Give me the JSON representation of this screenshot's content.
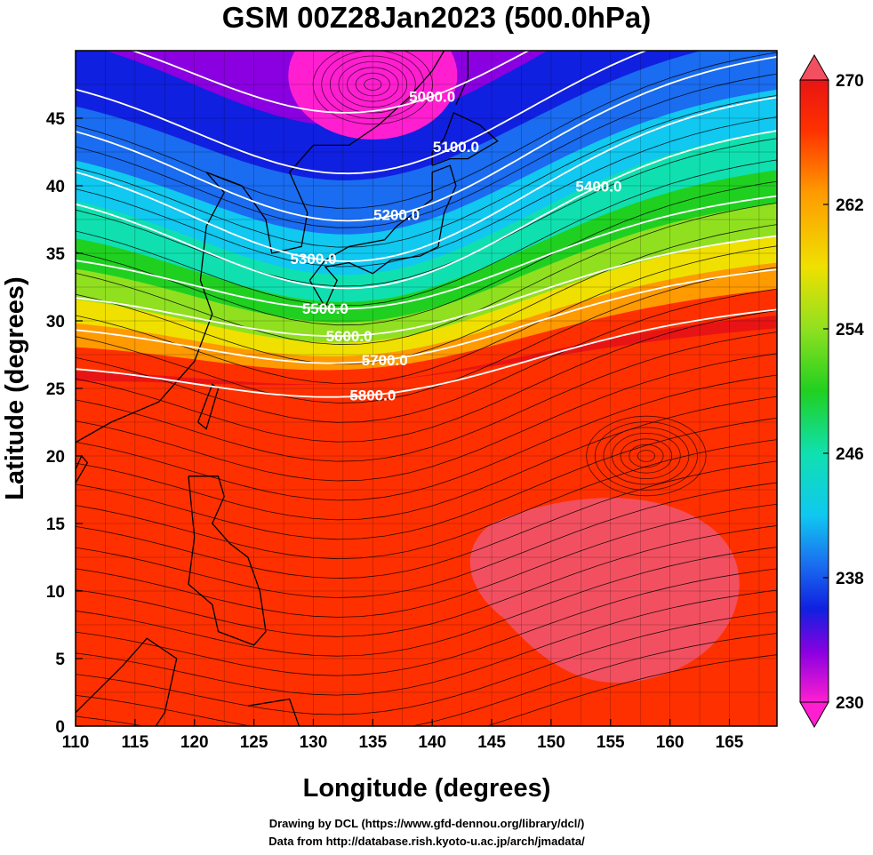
{
  "title": "GSM 00Z28Jan2023 (500.0hPa)",
  "axes": {
    "xlabel": "Longitude (degrees)",
    "ylabel": "Latitude  (degrees)",
    "x_ticks": [
      "110",
      "115",
      "120",
      "125",
      "130",
      "135",
      "140",
      "145",
      "150",
      "155",
      "160",
      "165"
    ],
    "y_ticks": [
      "0",
      "5",
      "10",
      "15",
      "20",
      "25",
      "30",
      "35",
      "40",
      "45"
    ],
    "xlim": [
      110,
      169
    ],
    "ylim": [
      0,
      50
    ]
  },
  "contours": [
    {
      "label": "5000.0",
      "value": 5000
    },
    {
      "label": "5100.0",
      "value": 5100
    },
    {
      "label": "5200.0",
      "value": 5200
    },
    {
      "label": "5300.0",
      "value": 5300
    },
    {
      "label": "5400.0",
      "value": 5400
    },
    {
      "label": "5500.0",
      "value": 5500
    },
    {
      "label": "5600.0",
      "value": 5600
    },
    {
      "label": "5700.0",
      "value": 5700
    },
    {
      "label": "5800.0",
      "value": 5800
    }
  ],
  "colorbar": {
    "min": 230,
    "max": 270,
    "labels": [
      "270",
      "262",
      "254",
      "246",
      "238",
      "230"
    ],
    "colors": {
      "c230": "#ff1fd0",
      "c234": "#8a00e0",
      "c238": "#1020e0",
      "c242": "#1a6cf0",
      "c246": "#10c8f0",
      "c250": "#10e0b0",
      "c254": "#20d020",
      "c258": "#90e020",
      "c262": "#f0e000",
      "c265": "#ff9a00",
      "c268": "#ff3000",
      "c270": "#e81414"
    }
  },
  "credits": [
    "Drawing by DCL (https://www.gfd-dennou.org/library/dcl/)",
    "Data from http://database.rish.kyoto-u.ac.jp/arch/jmadata/"
  ],
  "features": {
    "vortices": [
      {
        "name": "low-center",
        "lon": 135,
        "lat": 47.5
      },
      {
        "name": "high-center",
        "lon": 158,
        "lat": 20
      }
    ],
    "warm_pool_color": "#f25060"
  }
}
